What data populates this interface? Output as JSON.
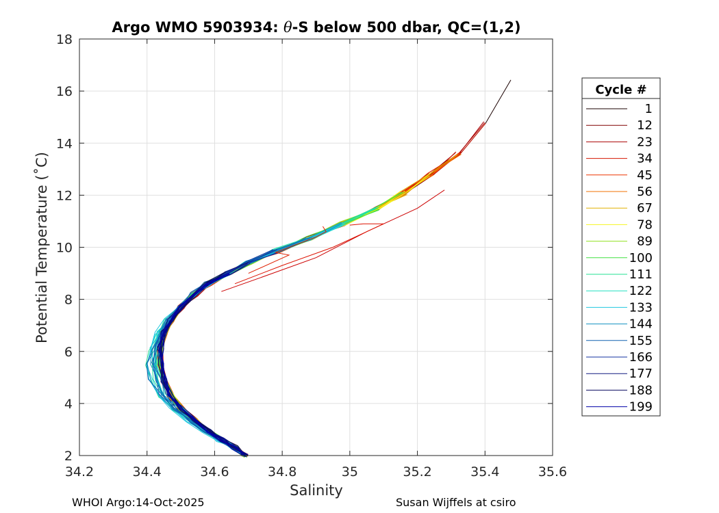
{
  "chart_data": {
    "type": "line",
    "title_prefix": "Argo WMO 5903934: ",
    "title_theta": "θ",
    "title_suffix": "-S below 500 dbar,  QC=(1,2)",
    "xlabel": "Salinity",
    "ylabel": "Potential Temperature (˚C)",
    "xlim": [
      34.2,
      35.6
    ],
    "ylim": [
      2,
      18
    ],
    "xticks": [
      34.2,
      34.4,
      34.6,
      34.8,
      35,
      35.2,
      35.4,
      35.6
    ],
    "xtick_labels": [
      "34.2",
      "34.4",
      "34.6",
      "34.8",
      "35",
      "35.2",
      "35.4",
      "35.6"
    ],
    "yticks": [
      2,
      4,
      6,
      8,
      10,
      12,
      14,
      16,
      18
    ],
    "ytick_labels": [
      "2",
      "4",
      "6",
      "8",
      "10",
      "12",
      "14",
      "16",
      "18"
    ],
    "grid": true,
    "legend_title": "Cycle #",
    "legend_position": "right",
    "series": [
      {
        "name": "1",
        "color": "#1a0000"
      },
      {
        "name": "12",
        "color": "#800000"
      },
      {
        "name": "23",
        "color": "#aa0000"
      },
      {
        "name": "34",
        "color": "#d41400"
      },
      {
        "name": "45",
        "color": "#ee3300"
      },
      {
        "name": "56",
        "color": "#f07000"
      },
      {
        "name": "67",
        "color": "#e0b000"
      },
      {
        "name": "78",
        "color": "#f5f520"
      },
      {
        "name": "89",
        "color": "#90e020"
      },
      {
        "name": "100",
        "color": "#40e040"
      },
      {
        "name": "111",
        "color": "#20e090"
      },
      {
        "name": "122",
        "color": "#20e0c0"
      },
      {
        "name": "133",
        "color": "#20c8e0"
      },
      {
        "name": "144",
        "color": "#1090c0"
      },
      {
        "name": "155",
        "color": "#1060b0"
      },
      {
        "name": "166",
        "color": "#1030a0"
      },
      {
        "name": "177",
        "color": "#101880"
      },
      {
        "name": "188",
        "color": "#0c0c60"
      },
      {
        "name": "199",
        "color": "#0000a8"
      }
    ],
    "profile_shape": {
      "salinity": [
        34.69,
        34.66,
        34.62,
        34.58,
        34.54,
        34.5,
        34.47,
        34.45,
        34.44,
        34.44,
        34.45,
        34.47,
        34.5,
        34.54,
        34.58,
        34.64,
        34.7,
        34.78,
        34.88,
        34.98,
        35.08,
        35.16,
        35.24,
        35.32,
        35.4,
        35.48
      ],
      "temperature": [
        2.0,
        2.3,
        2.6,
        2.95,
        3.35,
        3.8,
        4.3,
        4.9,
        5.5,
        6.1,
        6.7,
        7.2,
        7.7,
        8.2,
        8.6,
        9.0,
        9.4,
        9.85,
        10.35,
        10.9,
        11.5,
        12.1,
        12.8,
        13.6,
        14.8,
        16.4
      ]
    },
    "outlier_profiles": [
      {
        "salinity": [
          34.62,
          34.75,
          34.9,
          35.05,
          35.2,
          35.28
        ],
        "temperature": [
          8.3,
          8.9,
          9.6,
          10.6,
          11.5,
          12.2
        ],
        "color": "#cc0000"
      },
      {
        "salinity": [
          34.66,
          34.8,
          34.95,
          35.05,
          35.1,
          35.04,
          35.0
        ],
        "temperature": [
          8.6,
          9.3,
          10.0,
          10.6,
          10.9,
          10.9,
          10.85
        ],
        "color": "#dd1100"
      },
      {
        "salinity": [
          34.7,
          34.82,
          34.78,
          34.9,
          34.93,
          34.92
        ],
        "temperature": [
          9.0,
          9.7,
          9.8,
          10.4,
          10.6,
          10.8
        ],
        "color": "#e02000"
      }
    ]
  },
  "footer": {
    "left": "WHOI Argo:14-Oct-2025",
    "right": "Susan Wijffels at csiro"
  }
}
